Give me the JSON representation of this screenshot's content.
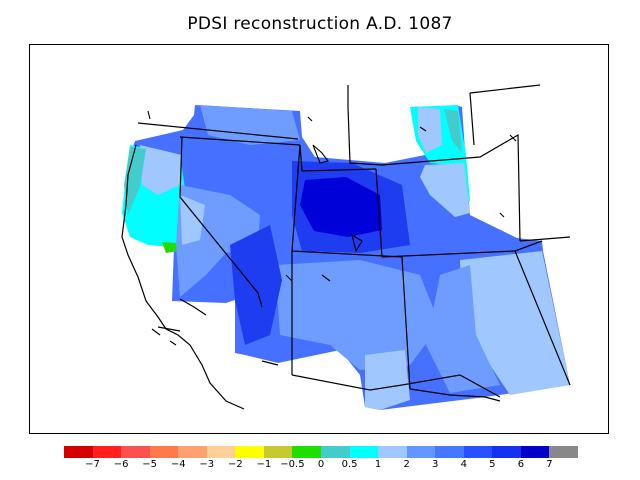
{
  "title": "PDSI reconstruction A.D. 1087",
  "legend": {
    "colors": [
      "#d40000",
      "#ff1f1f",
      "#ff5050",
      "#ff7a4a",
      "#ffa070",
      "#ffd09a",
      "#ffff00",
      "#c8c832",
      "#22dd00",
      "#44cccc",
      "#00ffff",
      "#a0c8ff",
      "#6496ff",
      "#4678ff",
      "#2850ff",
      "#1432f0",
      "#0000c8",
      "#888888"
    ],
    "labels": [
      "−7",
      "−6",
      "−5",
      "−4",
      "−3",
      "−2",
      "−1",
      "−0.5",
      "0",
      "0.5",
      "1",
      "2",
      "3",
      "4",
      "5",
      "6",
      "7"
    ]
  },
  "palette": {
    "very_wet": "#0000d8",
    "wet_strong": "#1e3cf0",
    "wet_mid": "#4670ff",
    "wet_light": "#6e9cff",
    "wet_faint": "#a0c8ff",
    "moist": "#00ffff",
    "near_normal": "#44cccc",
    "slight_dry": "#22dd00"
  }
}
